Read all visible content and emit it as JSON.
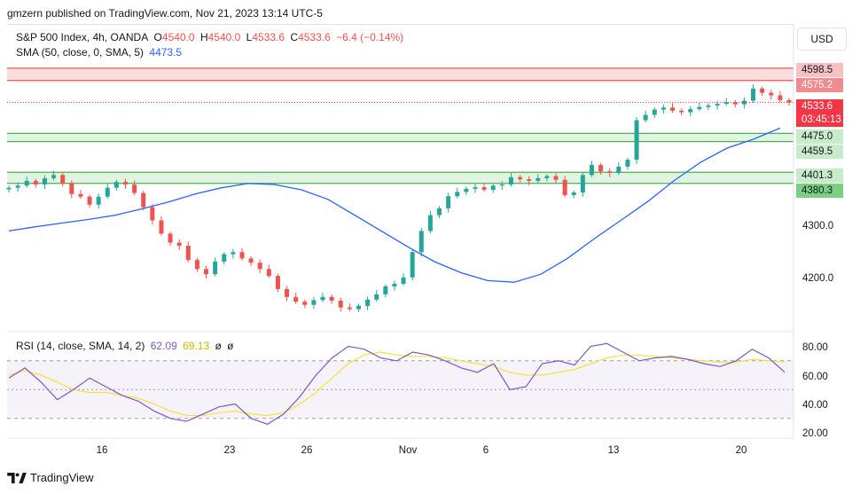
{
  "header": {
    "publisher": "gmzern published on TradingView.com, Nov 21, 2023 13:14 UTC-5"
  },
  "legend": {
    "symbol": "S&P 500 Index, 4h, OANDA",
    "o_label": "O",
    "o": "4540.0",
    "h_label": "H",
    "h": "4540.0",
    "l_label": "L",
    "l": "4533.6",
    "c_label": "C",
    "c": "4533.6",
    "change": "−6.4 (−0.14%)",
    "sma_label": "SMA (50, close, 0, SMA, 5)",
    "sma_value": "4473.5",
    "rsi_label": "RSI (14, close, SMA, 14, 2)",
    "rsi_value": "62.09",
    "rsi_ma_value": "69.13",
    "rsi_extra1": "ø",
    "rsi_extra2": "ø"
  },
  "currency_button": "USD",
  "price_tags": {
    "res_top": "4598.5",
    "res_bottom": "4575.2",
    "last_price": "4533.6",
    "countdown": "03:45:13",
    "sup1_top": "4475.0",
    "sup1_bottom": "4459.5",
    "sup2_top": "4401.3",
    "sup2_bottom": "4380.3"
  },
  "price_axis_labels": [
    "4300.0",
    "4200.0"
  ],
  "rsi_axis_labels": [
    "80.00",
    "60.00",
    "40.00",
    "20.00"
  ],
  "date_labels": [
    "16",
    "23",
    "26",
    "Nov",
    "6",
    "13",
    "20"
  ],
  "footer": {
    "brand": "TradingView"
  },
  "colors": {
    "up": "#26a69a",
    "down": "#ef5350",
    "sma": "#2962ff",
    "rsi": "#7e57c2",
    "rsi_ma": "#f7e13d",
    "resistance": "#f7c1c3",
    "support": "#c8ebc9",
    "last": "#f23645"
  },
  "chart_data": {
    "type": "candlestick",
    "symbol": "S&P 500 Index",
    "timeframe": "4h",
    "x_ticks": [
      "16",
      "23",
      "26",
      "Nov",
      "6",
      "13",
      "20"
    ],
    "price_axis_ticks": [
      4200,
      4300
    ],
    "zones": [
      {
        "kind": "resistance",
        "top": 4598.5,
        "bottom": 4575.2
      },
      {
        "kind": "support",
        "top": 4475.0,
        "bottom": 4459.5
      },
      {
        "kind": "support",
        "top": 4401.3,
        "bottom": 4380.3
      }
    ],
    "last_price": 4533.6,
    "close_series": [
      4372,
      4376,
      4385,
      4378,
      4390,
      4396,
      4380,
      4360,
      4355,
      4340,
      4355,
      4372,
      4383,
      4378,
      4362,
      4335,
      4310,
      4285,
      4268,
      4262,
      4235,
      4218,
      4208,
      4232,
      4246,
      4250,
      4238,
      4230,
      4218,
      4205,
      4180,
      4165,
      4156,
      4150,
      4159,
      4165,
      4158,
      4145,
      4142,
      4148,
      4160,
      4170,
      4185,
      4190,
      4202,
      4250,
      4290,
      4320,
      4333,
      4356,
      4364,
      4370,
      4373,
      4368,
      4376,
      4378,
      4392,
      4388,
      4385,
      4390,
      4394,
      4387,
      4358,
      4363,
      4396,
      4415,
      4403,
      4400,
      4412,
      4425,
      4500,
      4510,
      4520,
      4524,
      4518,
      4515,
      4521,
      4525,
      4528,
      4531,
      4534,
      4530,
      4537,
      4560,
      4552,
      4547,
      4538,
      4533.6
    ],
    "sma_series": [
      4290,
      4298,
      4305,
      4312,
      4320,
      4332,
      4345,
      4360,
      4372,
      4380,
      4378,
      4368,
      4350,
      4320,
      4290,
      4260,
      4232,
      4211,
      4196,
      4193,
      4208,
      4238,
      4275,
      4310,
      4345,
      4385,
      4420,
      4447,
      4464,
      4485
    ],
    "rsi_axis_ticks": [
      20,
      40,
      60,
      80
    ],
    "rsi_series": [
      58,
      65,
      55,
      43,
      50,
      58,
      52,
      46,
      42,
      35,
      30,
      28,
      33,
      38,
      40,
      30,
      26,
      33,
      45,
      60,
      72,
      80,
      78,
      72,
      70,
      76,
      74,
      70,
      65,
      62,
      68,
      50,
      52,
      68,
      70,
      67,
      80,
      82,
      76,
      70,
      72,
      73,
      71,
      68,
      66,
      70,
      78,
      72,
      62.09
    ],
    "rsi_ma_series": [
      60,
      63,
      60,
      55,
      50,
      48,
      48,
      46,
      44,
      40,
      35,
      32,
      32,
      34,
      35,
      33,
      32,
      34,
      40,
      48,
      58,
      68,
      74,
      76,
      74,
      73,
      73,
      72,
      70,
      68,
      66,
      62,
      60,
      60,
      62,
      64,
      68,
      72,
      74,
      74,
      73,
      72,
      71,
      70,
      69,
      69,
      71,
      70,
      69.13
    ]
  }
}
